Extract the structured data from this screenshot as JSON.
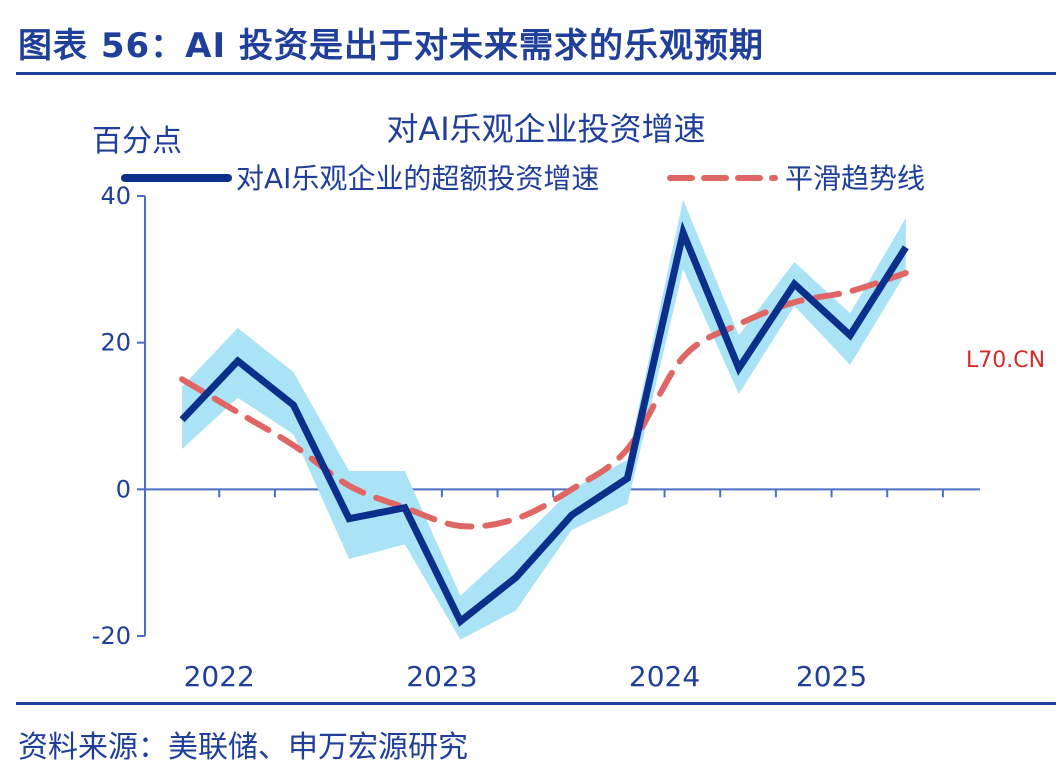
{
  "figure_title": "图表 56：AI 投资是出于对未来需求的乐观预期",
  "source": "资料来源：美联储、申万宏源研究",
  "watermark": "L70.CN",
  "chart_data": {
    "type": "line",
    "title": "对AI乐观企业投资增速",
    "ylabel": "百分点",
    "xlabel": "",
    "ylim": [
      -20,
      40
    ],
    "yticks": [
      -20,
      0,
      20,
      40
    ],
    "x_tick_labels": [
      {
        "label": "2022",
        "x": 0.5
      },
      {
        "label": "2023",
        "x": 3.5
      },
      {
        "label": "2024",
        "x": 6.5
      },
      {
        "label": "2025",
        "x": 8.75
      }
    ],
    "x": [
      0,
      0.75,
      1.5,
      2.25,
      3,
      3.75,
      4.5,
      5.25,
      6,
      6.75,
      7.5,
      8.25,
      9,
      9.75
    ],
    "series": [
      {
        "name": "对AI乐观企业的超额投资增速",
        "color": "#0d2f8c",
        "style": "solid",
        "values": [
          9.5,
          17.5,
          11.5,
          -4,
          -2.5,
          -18,
          -12,
          -3.5,
          1.5,
          35,
          16.5,
          28,
          21,
          33
        ],
        "band_upper": [
          14,
          22,
          16,
          2.5,
          2.5,
          -14.5,
          -7.5,
          0,
          4,
          39.5,
          21,
          31,
          24,
          37
        ],
        "band_lower": [
          5.5,
          12.5,
          7.5,
          -9.5,
          -7.5,
          -20.5,
          -16.5,
          -5.5,
          -2,
          30,
          13,
          25,
          17,
          29.5
        ],
        "band_color": "#a9e3f5"
      },
      {
        "name": "平滑趋势线",
        "color": "#e06666",
        "style": "dashed",
        "values": [
          15,
          10.5,
          6,
          0.5,
          -2.5,
          -5,
          -4,
          0,
          5.5,
          18,
          22.5,
          25.5,
          27,
          29.5
        ]
      }
    ]
  }
}
